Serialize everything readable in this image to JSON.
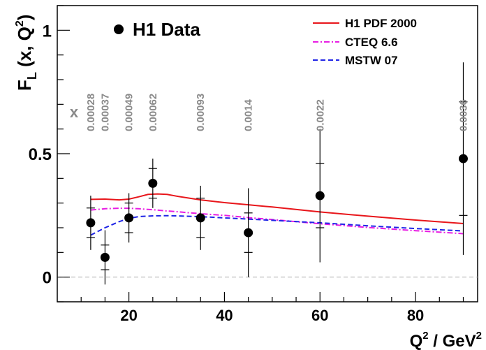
{
  "chart_data": {
    "type": "scatter",
    "title": "",
    "xlabel": "Q²/GeV²",
    "ylabel": "F_L(x, Q²)",
    "xlim": [
      5,
      93
    ],
    "ylim": [
      -0.1,
      1.1
    ],
    "x_ticks": [
      20,
      40,
      60,
      80
    ],
    "y_ticks": [
      0,
      0.5,
      1
    ],
    "y_tick_labels": [
      "0",
      "0.5",
      "1"
    ],
    "x_tick_labels": [
      "20",
      "40",
      "60",
      "80"
    ],
    "zero_line": true,
    "data_label": "H1 Data",
    "x_marker_label": "x",
    "data": [
      {
        "q2": 12,
        "x": "0.00028",
        "fl": 0.22,
        "err_stat": 0.06,
        "err_tot": 0.11
      },
      {
        "q2": 15,
        "x": "0.00037",
        "fl": 0.08,
        "err_stat": 0.05,
        "err_tot": 0.11
      },
      {
        "q2": 20,
        "x": "0.00049",
        "fl": 0.24,
        "err_stat": 0.06,
        "err_tot": 0.1
      },
      {
        "q2": 25,
        "x": "0.00062",
        "fl": 0.38,
        "err_stat": 0.06,
        "err_tot": 0.1
      },
      {
        "q2": 35,
        "x": "0.00093",
        "fl": 0.24,
        "err_stat": 0.08,
        "err_tot": 0.13
      },
      {
        "q2": 45,
        "x": "0.0014",
        "fl": 0.18,
        "err_stat": 0.08,
        "err_tot": 0.18
      },
      {
        "q2": 60,
        "x": "0.0022",
        "fl": 0.33,
        "err_stat": 0.13,
        "err_tot": 0.27
      },
      {
        "q2": 90,
        "x": "0.0036",
        "fl": 0.48,
        "err_stat": 0.23,
        "err_tot": 0.39
      }
    ],
    "series": [
      {
        "name": "H1 PDF 2000",
        "color": "#e8161b",
        "dash": "solid",
        "x": [
          12,
          15,
          18,
          20,
          22,
          24,
          26,
          28,
          30,
          35,
          40,
          45,
          50,
          60,
          70,
          80,
          90
        ],
        "y": [
          0.315,
          0.316,
          0.313,
          0.316,
          0.325,
          0.335,
          0.337,
          0.335,
          0.328,
          0.313,
          0.302,
          0.293,
          0.284,
          0.264,
          0.247,
          0.231,
          0.217
        ]
      },
      {
        "name": "CTEQ 6.6",
        "color": "#e81ce3",
        "dash": "dashdot",
        "x": [
          12,
          15,
          18,
          20,
          22,
          25,
          28,
          30,
          35,
          40,
          45,
          50,
          60,
          70,
          80,
          90
        ],
        "y": [
          0.272,
          0.277,
          0.279,
          0.279,
          0.277,
          0.273,
          0.268,
          0.265,
          0.257,
          0.25,
          0.241,
          0.233,
          0.216,
          0.201,
          0.188,
          0.176
        ]
      },
      {
        "name": "MSTW 07",
        "color": "#1f24e6",
        "dash": "dashed",
        "x": [
          12,
          15,
          18,
          20,
          22,
          25,
          28,
          30,
          35,
          40,
          45,
          50,
          60,
          70,
          80,
          90
        ],
        "y": [
          0.17,
          0.2,
          0.225,
          0.238,
          0.245,
          0.248,
          0.249,
          0.248,
          0.245,
          0.24,
          0.235,
          0.23,
          0.22,
          0.208,
          0.197,
          0.187
        ]
      }
    ]
  }
}
